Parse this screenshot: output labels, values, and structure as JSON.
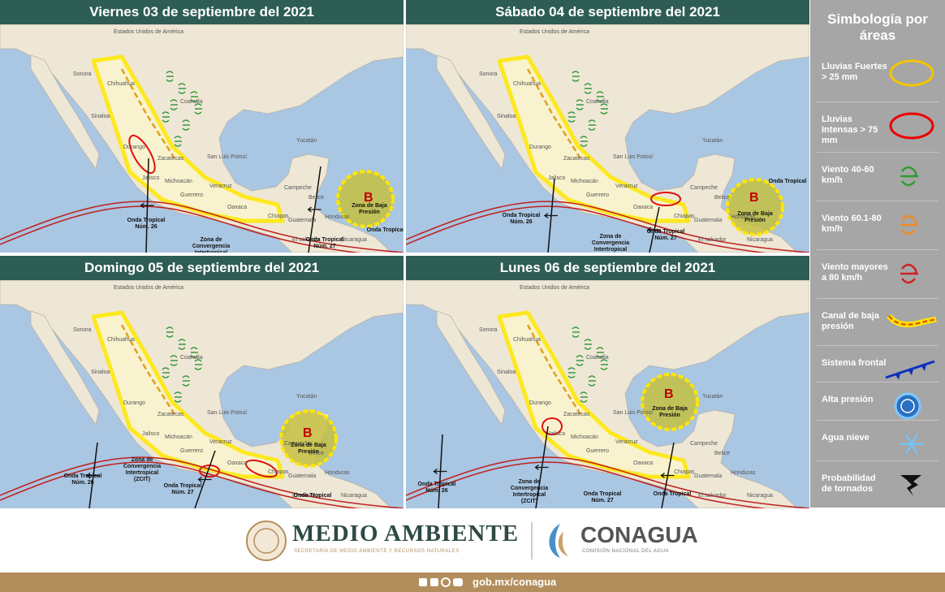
{
  "panels": [
    {
      "title": "Viernes 03 de septiembre del 2021",
      "annotations": [
        "Onda Tropical Núm. 26",
        "Zona de Convergencia Intertropical (ZCIT)",
        "Onda Tropical Núm. 27",
        "Onda Tropical",
        "B",
        "Zona de Baja Presión"
      ]
    },
    {
      "title": "Sábado 04 de septiembre del 2021",
      "annotations": [
        "Onda Tropical Núm. 26",
        "Zona de Convergencia Intertropical (ZCIT)",
        "Onda Tropical Núm. 27",
        "Onda Tropical",
        "B",
        "Zona de Baja Presión"
      ]
    },
    {
      "title": "Domingo 05 de septiembre del 2021",
      "annotations": [
        "Onda Tropical Núm. 26",
        "Zona de Convergencia Intertropical (ZCIT)",
        "Onda Tropical Núm. 27",
        "Onda Tropical",
        "B",
        "Zona de Baja Presión"
      ]
    },
    {
      "title": "Lunes 06 de septiembre del 2021",
      "annotations": [
        "Onda Tropical Núm. 26",
        "Zona de Convergencia Intertropical (ZCIT)",
        "Onda Tropical Núm. 27",
        "Onda Tropical",
        "B",
        "Zona de Baja Presión"
      ]
    }
  ],
  "base_map": {
    "labels": [
      "Estados Unidos de América",
      "Sonora",
      "Chihuahua",
      "Coahuila",
      "Sinaloa",
      "Durango",
      "Zacatecas",
      "San Luis Potosí",
      "Jalisco",
      "Michoacán",
      "Guerrero",
      "Veracruz",
      "Oaxaca",
      "Chiapas",
      "Yucatán",
      "Campeche",
      "Belice",
      "Guatemala",
      "Honduras",
      "El salvador",
      "Nicaragua"
    ]
  },
  "legend": {
    "title": "Simbología por áreas",
    "items": [
      "Lluvias Fuertes > 25 mm",
      "Lluvias Intensas > 75 mm",
      "Viento 40-60 km/h",
      "Viento 60.1-80 km/h",
      "Viento mayores a 80 km/h",
      "Canal de baja presión",
      "Sistema frontal",
      "Alta presión",
      "Agua nieve",
      "Probabilidad de tornados"
    ]
  },
  "footer": {
    "agency": "MEDIO AMBIENTE",
    "agency_subtitle": "SECRETARÍA DE MEDIO AMBIENTE Y RECURSOS NATURALES",
    "commission": "CONAGUA",
    "commission_subtitle": "COMISIÓN NACIONAL DEL AGUA",
    "website": "gob.mx/conagua"
  }
}
